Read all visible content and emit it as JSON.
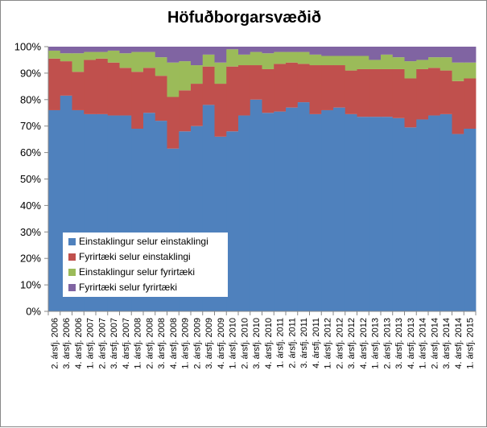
{
  "chart_data": {
    "type": "bar",
    "stacked": true,
    "normalized": true,
    "title": "Höfuðborgarsvæðið",
    "xlabel": "",
    "ylabel": "",
    "ylim": [
      0,
      100
    ],
    "y_ticks": [
      "0%",
      "10%",
      "20%",
      "30%",
      "40%",
      "50%",
      "60%",
      "70%",
      "80%",
      "90%",
      "100%"
    ],
    "grid": false,
    "legend_position": "inside lower-left",
    "categories": [
      "2. ársfj. 2006",
      "3. ársfj. 2006",
      "4. ársfj. 2006",
      "1. ársfj. 2007",
      "2. ársfj. 2007",
      "3. ársfj. 2007",
      "4. ársfj. 2007",
      "1. ársfj. 2008",
      "2. ársfj. 2008",
      "3. ársfj. 2008",
      "4. ársfj. 2008",
      "1. ársfj. 2009",
      "2. ársfj. 2009",
      "3. ársfj. 2009",
      "4. ársfj. 2009",
      "1. ársfj. 2010",
      "2. ársfj. 2010",
      "3. ársfj. 2010",
      "4. ársfj. 2010",
      "1. ársfj. 2011",
      "2. ársfj. 2011",
      "3. ársfj. 2011",
      "4. ársfj. 2011",
      "1. ársfj. 2012",
      "2. ársfj. 2012",
      "3. ársfj. 2012",
      "4. ársfj. 2012",
      "1. ársfj. 2013",
      "2. ársfj. 2013",
      "3. ársfj. 2013",
      "4. ársfj. 2013",
      "1. ársfj. 2014",
      "2. ársfj. 2014",
      "3. ársfj. 2014",
      "4. ársfj. 2014",
      "1. ársfj. 2015"
    ],
    "series": [
      {
        "name": "Einstaklingur selur einstaklingi",
        "color": "#4f81bd",
        "values": [
          76,
          81.5,
          76,
          74.5,
          74.5,
          74,
          74,
          69,
          75,
          72,
          61.5,
          68,
          70,
          78,
          66,
          68,
          74,
          80,
          75,
          75.5,
          77,
          79,
          74.5,
          76,
          77,
          74.5,
          73.5,
          73.5,
          73.5,
          73,
          69.5,
          72.5,
          74,
          74.5,
          67,
          69
        ]
      },
      {
        "name": "Fyrirtæki selur einstaklingi",
        "color": "#c0504d",
        "values": [
          19.5,
          13,
          14.5,
          20.5,
          21,
          20,
          18,
          21.5,
          17,
          17,
          19.5,
          15.5,
          16,
          14.5,
          20,
          24.5,
          19,
          13,
          16.5,
          18,
          17,
          14.5,
          18.5,
          17,
          16,
          16.5,
          18,
          18,
          18,
          18.5,
          18.5,
          19,
          18,
          16.5,
          20,
          19
        ]
      },
      {
        "name": "Einstaklingur selur fyrirtæki",
        "color": "#9bbb59",
        "values": [
          3,
          3,
          7,
          3,
          2.5,
          4.5,
          5.5,
          7.5,
          6,
          7,
          13,
          11,
          7,
          4.5,
          8,
          6.5,
          4,
          5,
          6,
          4.5,
          4,
          4.5,
          4,
          3.5,
          3.5,
          5.5,
          5,
          3.5,
          5.5,
          4.5,
          6.5,
          3.5,
          4,
          5,
          7,
          6
        ]
      },
      {
        "name": "Fyrirtæki selur fyrirtæki",
        "color": "#8064a2",
        "values": [
          1.5,
          2.5,
          2.5,
          2,
          2,
          1.5,
          2.5,
          2,
          2,
          4,
          6,
          5.5,
          7,
          3,
          6,
          1,
          3,
          2,
          2.5,
          2,
          2,
          2,
          3,
          3.5,
          3.5,
          3.5,
          3.5,
          5,
          3,
          4,
          5.5,
          5,
          4,
          4,
          6,
          6
        ]
      }
    ]
  }
}
